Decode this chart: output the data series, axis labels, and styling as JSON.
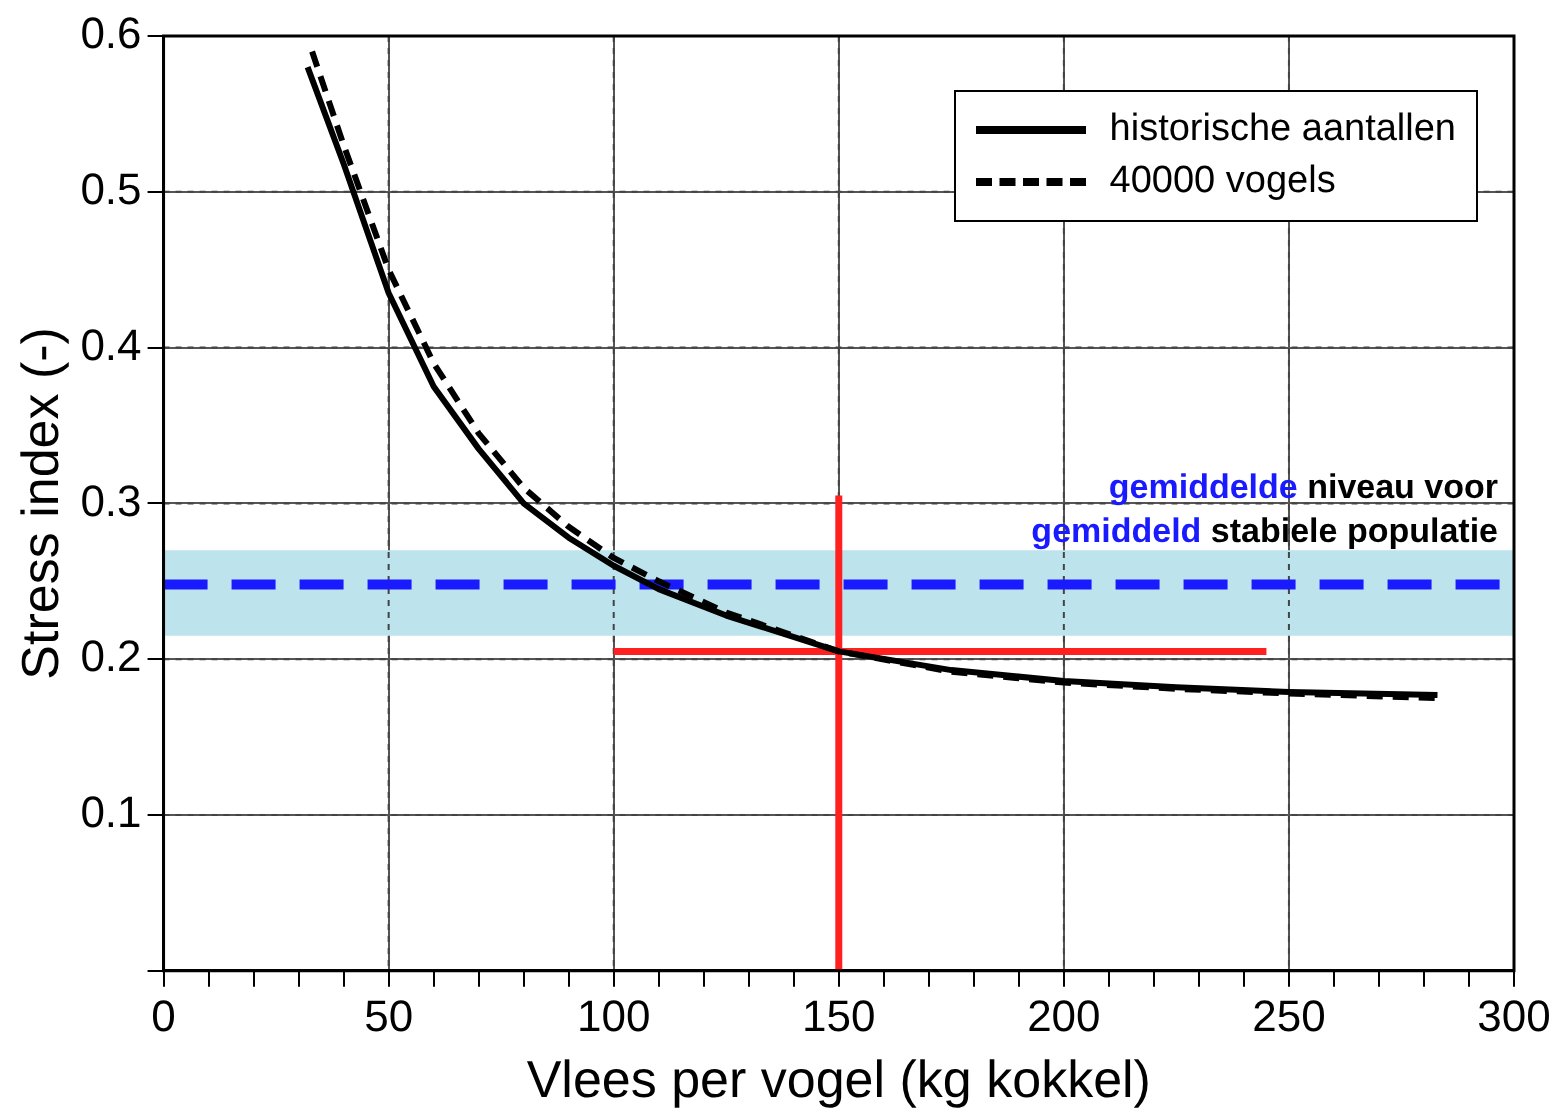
{
  "chart_data": {
    "type": "line",
    "xlabel": "Vlees per vogel (kg kokkel)",
    "ylabel": "Stress index (-)",
    "xlim": [
      0,
      300
    ],
    "xticks": [
      0,
      {
        "value": 10,
        "label": null
      },
      {
        "value": 20,
        "label": null
      },
      {
        "value": 30,
        "label": null
      },
      {
        "value": 40,
        "label": null
      },
      50,
      {
        "value": 60,
        "label": null
      },
      {
        "value": 70,
        "label": null
      },
      {
        "value": 80,
        "label": null
      },
      {
        "value": 90,
        "label": null
      },
      100,
      {
        "value": 110,
        "label": null
      },
      {
        "value": 120,
        "label": null
      },
      {
        "value": 130,
        "label": null
      },
      {
        "value": 140,
        "label": null
      },
      150,
      {
        "value": 160,
        "label": null
      },
      {
        "value": 170,
        "label": null
      },
      {
        "value": 180,
        "label": null
      },
      {
        "value": 190,
        "label": null
      },
      200,
      {
        "value": 210,
        "label": null
      },
      {
        "value": 220,
        "label": null
      },
      {
        "value": 230,
        "label": null
      },
      {
        "value": 240,
        "label": null
      },
      250,
      {
        "value": 260,
        "label": null
      },
      {
        "value": 270,
        "label": null
      },
      {
        "value": 280,
        "label": null
      },
      {
        "value": 290,
        "label": null
      },
      300
    ],
    "ylim": [
      0,
      0.6
    ],
    "yticks": [
      {
        "value": 0,
        "label": null
      },
      0.1,
      0.2,
      0.3,
      0.4,
      0.5,
      0.6
    ],
    "grid": true,
    "legend": "top right",
    "marker": "none",
    "series": [
      {
        "name": "historische aantallen",
        "color": "#000000",
        "line_style": "solid",
        "x": [
          32,
          40,
          50,
          60,
          70,
          80,
          90,
          100,
          110,
          125,
          150,
          175,
          200,
          225,
          250,
          283
        ],
        "values": [
          0.58,
          0.518,
          0.435,
          0.375,
          0.335,
          0.3,
          0.278,
          0.26,
          0.245,
          0.228,
          0.205,
          0.193,
          0.186,
          0.182,
          0.179,
          0.177
        ]
      },
      {
        "name": "40000 vogels",
        "color": "#000000",
        "line_style": "dashed",
        "x": [
          33,
          40,
          50,
          60,
          70,
          80,
          90,
          100,
          110,
          125,
          150,
          175,
          200,
          225,
          250,
          283
        ],
        "values": [
          0.59,
          0.53,
          0.45,
          0.39,
          0.345,
          0.31,
          0.285,
          0.265,
          0.25,
          0.23,
          0.205,
          0.192,
          0.185,
          0.181,
          0.178,
          0.175
        ]
      },
      {
        "color": "#ff2020",
        "line_style": "solid",
        "x": [
          100,
          245
        ],
        "values": [
          0.205,
          0.205
        ]
      },
      {
        "color": "#ff2020",
        "line_style": "solid",
        "x": [
          150,
          150
        ],
        "values": [
          0,
          0.305
        ]
      }
    ],
    "ref_lines": [
      {
        "axis": "y",
        "value": 0.248,
        "color": "#1a1aff",
        "line_style": "dashed"
      }
    ],
    "bands": [
      {
        "axis": "y",
        "from": 0.215,
        "to": 0.27,
        "color": "#bde3ec"
      }
    ],
    "annotations": [
      "gemiddelde niveau voor",
      "gemiddeld stabiele populatie"
    ]
  }
}
